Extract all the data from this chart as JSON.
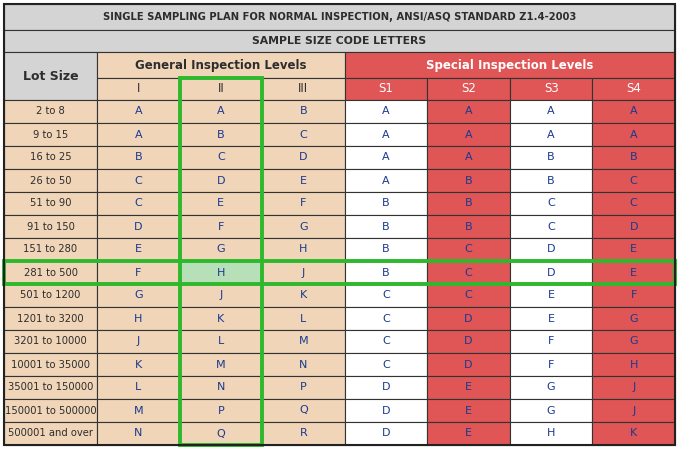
{
  "title1": "SINGLE SAMPLING PLAN FOR NORMAL INSPECTION, ANSI/ASQ STANDARD Z1.4-2003",
  "title2": "SAMPLE SIZE CODE LETTERS",
  "col_header1": "General Inspection Levels",
  "col_header2": "Special Inspection Levels",
  "sub_headers": [
    "I",
    "II",
    "III",
    "S1",
    "S2",
    "S3",
    "S4"
  ],
  "lot_sizes": [
    "2 to 8",
    "9 to 15",
    "16 to 25",
    "26 to 50",
    "51 to 90",
    "91 to 150",
    "151 to 280",
    "281 to 500",
    "501 to 1200",
    "1201 to 3200",
    "3201 to 10000",
    "10001 to 35000",
    "35001 to 150000",
    "150001 to 500000",
    "500001 and over"
  ],
  "table_data": [
    [
      "A",
      "A",
      "B",
      "A",
      "A",
      "A",
      "A"
    ],
    [
      "A",
      "B",
      "C",
      "A",
      "A",
      "A",
      "A"
    ],
    [
      "B",
      "C",
      "D",
      "A",
      "A",
      "B",
      "B"
    ],
    [
      "C",
      "D",
      "E",
      "A",
      "B",
      "B",
      "C"
    ],
    [
      "C",
      "E",
      "F",
      "B",
      "B",
      "C",
      "C"
    ],
    [
      "D",
      "F",
      "G",
      "B",
      "B",
      "C",
      "D"
    ],
    [
      "E",
      "G",
      "H",
      "B",
      "C",
      "D",
      "E"
    ],
    [
      "F",
      "H",
      "J",
      "B",
      "C",
      "D",
      "E"
    ],
    [
      "G",
      "J",
      "K",
      "C",
      "C",
      "E",
      "F"
    ],
    [
      "H",
      "K",
      "L",
      "C",
      "D",
      "E",
      "G"
    ],
    [
      "J",
      "L",
      "M",
      "C",
      "D",
      "F",
      "G"
    ],
    [
      "K",
      "M",
      "N",
      "C",
      "D",
      "F",
      "H"
    ],
    [
      "L",
      "N",
      "P",
      "D",
      "E",
      "G",
      "J"
    ],
    [
      "M",
      "P",
      "Q",
      "D",
      "E",
      "G",
      "J"
    ],
    [
      "N",
      "Q",
      "R",
      "D",
      "E",
      "H",
      "K"
    ]
  ],
  "colors": {
    "title_bg": "#d4d4d4",
    "lot_size_bg": "#d4d4d4",
    "general_header_bg": "#f0d5b8",
    "special_header_bg": "#e05555",
    "special_cell_red": "#e05555",
    "special_cell_white": "#ffffff",
    "lot_data_bg": "#f0d5b8",
    "gen_data_bg": "#f0d5b8",
    "text_dark": "#2d2d2d",
    "text_white": "#ffffff",
    "text_blue": "#1a3a8f",
    "green_border": "#2db82d",
    "green_cell_bg": "#b8e0b8"
  },
  "highlighted_row": 7,
  "highlighted_col": 1,
  "n_rows": 15
}
